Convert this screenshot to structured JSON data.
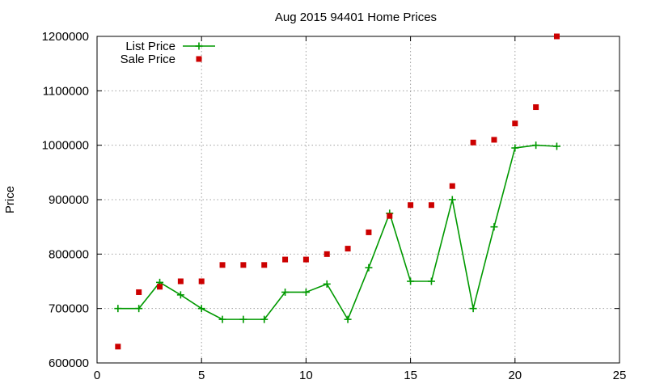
{
  "chart_data": {
    "type": "line",
    "title": "Aug 2015 94401 Home Prices",
    "xlabel": "",
    "ylabel": "Price",
    "xlim": [
      0,
      25
    ],
    "ylim": [
      600000,
      1200000
    ],
    "xticks": [
      0,
      5,
      10,
      15,
      20,
      25
    ],
    "yticks": [
      600000,
      700000,
      800000,
      900000,
      1000000,
      1100000,
      1200000
    ],
    "grid": true,
    "legend_position": "top-left",
    "series": [
      {
        "name": "List Price",
        "style": "lines+crosses",
        "color": "#009900",
        "x": [
          1,
          2,
          3,
          4,
          5,
          6,
          7,
          8,
          9,
          10,
          11,
          12,
          13,
          14,
          15,
          16,
          17,
          18,
          19,
          20,
          21,
          22
        ],
        "y": [
          700000,
          700000,
          748000,
          725000,
          700000,
          680000,
          680000,
          680000,
          730000,
          730000,
          745000,
          680000,
          775000,
          875000,
          750000,
          750000,
          900000,
          700000,
          850000,
          995000,
          1000000,
          998000
        ]
      },
      {
        "name": "Sale Price",
        "style": "squares",
        "color": "#cc0000",
        "x": [
          1,
          2,
          3,
          4,
          5,
          6,
          7,
          8,
          9,
          10,
          11,
          12,
          13,
          14,
          15,
          16,
          17,
          18,
          19,
          20,
          21,
          22
        ],
        "y": [
          630000,
          730000,
          740000,
          750000,
          750000,
          780000,
          780000,
          780000,
          790000,
          790000,
          800000,
          810000,
          840000,
          870000,
          890000,
          890000,
          925000,
          1005000,
          1010000,
          1040000,
          1070000,
          1200000
        ]
      }
    ]
  }
}
